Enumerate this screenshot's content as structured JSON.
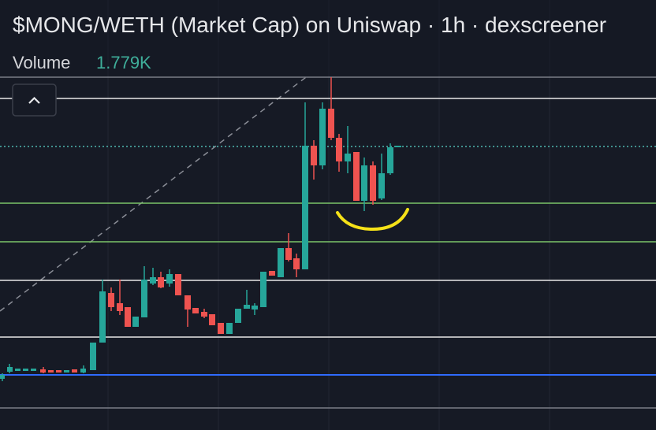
{
  "header": {
    "title": "$MONG/WETH (Market Cap) on Uniswap · 1h · dexscreener",
    "volume_label": "Volume",
    "volume_value": "1.779K"
  }
}
